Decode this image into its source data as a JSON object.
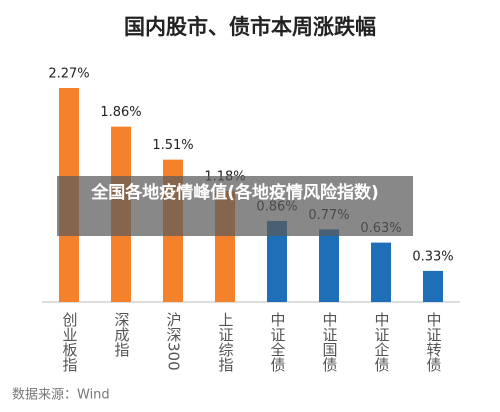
{
  "chart_data": {
    "type": "bar",
    "title": "国内股市、债市本周涨跌幅",
    "categories": [
      "创业板指",
      "深成指",
      "沪深300",
      "上证综指",
      "中证全债",
      "中证国债",
      "中证企债",
      "中证转债"
    ],
    "values": [
      2.27,
      1.86,
      1.51,
      1.18,
      0.86,
      0.77,
      0.63,
      0.33
    ],
    "value_labels": [
      "2.27%",
      "1.86%",
      "1.51%",
      "1.18%",
      "0.86%",
      "0.77%",
      "0.63%",
      "0.33%"
    ],
    "colors": [
      "#f5822a",
      "#f5822a",
      "#f5822a",
      "#f5822a",
      "#1f6fb8",
      "#1f6fb8",
      "#1f6fb8",
      "#1f6fb8"
    ],
    "source": "数据来源：Wind"
  },
  "overlay": {
    "caption": "全国各地疫情峰值(各地疫情风险指数)"
  }
}
